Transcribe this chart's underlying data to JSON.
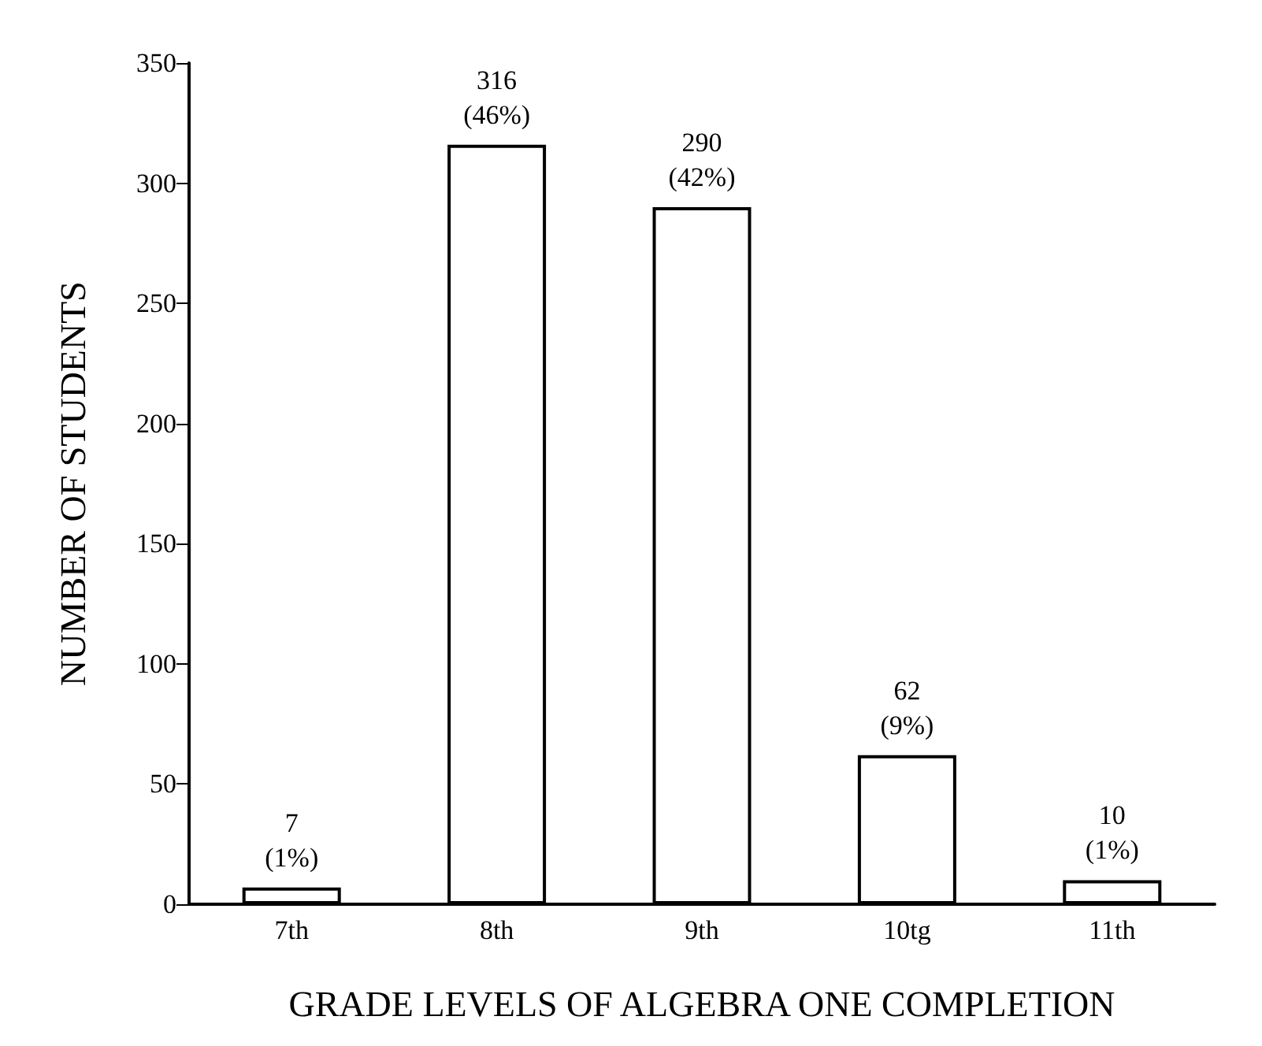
{
  "chart_data": {
    "type": "bar",
    "xlabel": "GRADE LEVELS OF ALGEBRA ONE COMPLETION",
    "ylabel": "NUMBER OF STUDENTS",
    "categories": [
      "7th",
      "8th",
      "9th",
      "10tg",
      "11th"
    ],
    "values": [
      7,
      316,
      290,
      62,
      10
    ],
    "value_labels": [
      "7\n(1%)",
      "316\n(46%)",
      "290\n(42%)",
      "62\n(9%)",
      "10\n(1%)"
    ],
    "color": "#ffffff",
    "ylim": [
      0,
      350
    ],
    "yticks": [
      0,
      50,
      100,
      150,
      200,
      250,
      300,
      350
    ],
    "grid": false
  }
}
